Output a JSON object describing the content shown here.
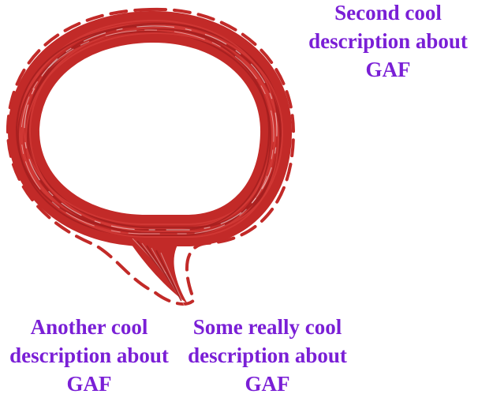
{
  "colors": {
    "accent": "#7a1fd6",
    "bubble": "#c22a28",
    "bubble_dark": "#a51f1f",
    "background": "#ffffff"
  },
  "graphic": {
    "icon": "speech-bubble-scribble-icon"
  },
  "captions": [
    {
      "id": "top",
      "lines": [
        "Second cool",
        "description about",
        "GAF"
      ]
    },
    {
      "id": "left",
      "lines": [
        "Another cool",
        "description about",
        "GAF"
      ]
    },
    {
      "id": "mid",
      "lines": [
        "Some really cool",
        "description about",
        "GAF"
      ]
    }
  ]
}
